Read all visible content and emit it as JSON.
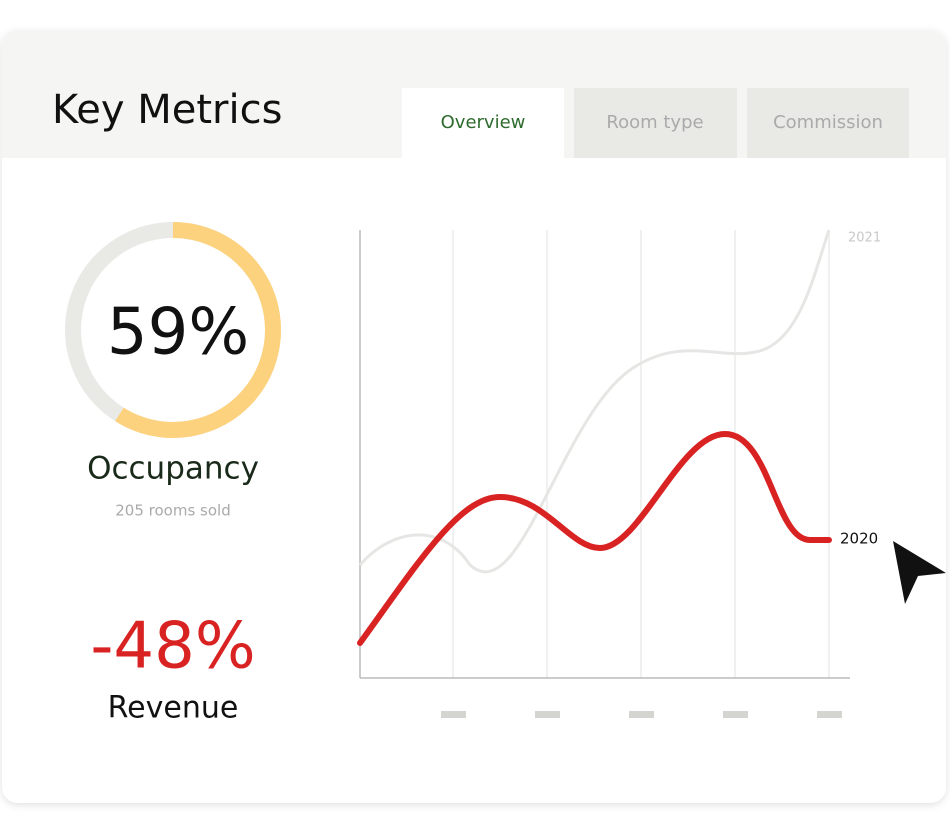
{
  "header": {
    "title": "Key Metrics",
    "tabs": [
      "Overview",
      "Room type",
      "Commission"
    ]
  },
  "occupancy": {
    "value": 59,
    "label": "59%",
    "name": "Occupancy",
    "subtitle": "205 rooms sold"
  },
  "revenue": {
    "label": "-48%",
    "name": "Revenue"
  },
  "chart": {
    "series": [
      "2021",
      "2020"
    ]
  }
}
